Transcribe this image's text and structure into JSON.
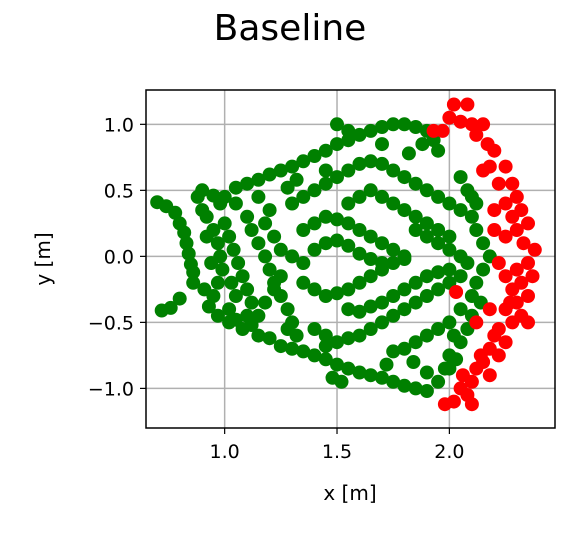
{
  "chart_data": {
    "type": "scatter",
    "title": "Baseline",
    "xlabel": "x [m]",
    "ylabel": "y [m]",
    "xlim": [
      0.65,
      2.47
    ],
    "ylim": [
      -1.3,
      1.26
    ],
    "x_ticks": [
      1.0,
      1.5,
      2.0
    ],
    "y_ticks": [
      -1.0,
      -0.5,
      0.0,
      0.5,
      1.0
    ],
    "x_tick_labels": [
      "1.0",
      "1.5",
      "2.0"
    ],
    "y_tick_labels": [
      "−1.0",
      "−0.5",
      "0.0",
      "0.5",
      "1.0"
    ],
    "grid": true,
    "legend": "none",
    "colors": {
      "safe": "#008000",
      "collision": "#ff0000"
    },
    "series": [
      {
        "color": "#008000",
        "points": [
          [
            0.7,
            0.41
          ],
          [
            0.74,
            0.38
          ],
          [
            0.78,
            0.33
          ],
          [
            0.8,
            0.25
          ],
          [
            0.82,
            0.18
          ],
          [
            0.83,
            0.1
          ],
          [
            0.84,
            0.02
          ],
          [
            0.85,
            -0.06
          ],
          [
            0.86,
            -0.12
          ],
          [
            0.86,
            -0.2
          ],
          [
            0.8,
            -0.32
          ],
          [
            0.76,
            -0.39
          ],
          [
            0.72,
            -0.41
          ],
          [
            0.88,
            0.45
          ],
          [
            0.9,
            0.5
          ],
          [
            0.95,
            0.46
          ],
          [
            0.98,
            0.4
          ],
          [
            0.92,
            0.3
          ],
          [
            0.95,
            0.2
          ],
          [
            0.97,
            0.1
          ],
          [
            0.98,
            0.0
          ],
          [
            0.99,
            -0.1
          ],
          [
            0.97,
            -0.2
          ],
          [
            0.95,
            -0.3
          ],
          [
            0.93,
            -0.38
          ],
          [
            0.97,
            -0.45
          ],
          [
            1.02,
            -0.4
          ],
          [
            1.05,
            -0.48
          ],
          [
            1.08,
            -0.55
          ],
          [
            1.12,
            -0.52
          ],
          [
            1.05,
            0.52
          ],
          [
            1.1,
            0.55
          ],
          [
            1.15,
            0.58
          ],
          [
            1.2,
            0.62
          ],
          [
            1.25,
            0.65
          ],
          [
            1.3,
            0.68
          ],
          [
            1.35,
            0.72
          ],
          [
            1.4,
            0.76
          ],
          [
            1.45,
            0.8
          ],
          [
            1.5,
            0.85
          ],
          [
            1.55,
            0.88
          ],
          [
            1.6,
            0.92
          ],
          [
            1.65,
            0.95
          ],
          [
            1.7,
            0.98
          ],
          [
            1.75,
            1.0
          ],
          [
            1.8,
            1.0
          ],
          [
            1.85,
            0.98
          ],
          [
            1.9,
            0.95
          ],
          [
            1.93,
            0.88
          ],
          [
            1.95,
            0.8
          ],
          [
            1.05,
            0.4
          ],
          [
            1.1,
            0.3
          ],
          [
            1.12,
            0.2
          ],
          [
            1.15,
            0.1
          ],
          [
            1.18,
            0.0
          ],
          [
            1.2,
            -0.1
          ],
          [
            1.22,
            -0.2
          ],
          [
            1.25,
            -0.3
          ],
          [
            1.28,
            -0.4
          ],
          [
            1.3,
            -0.5
          ],
          [
            1.15,
            -0.6
          ],
          [
            1.2,
            -0.62
          ],
          [
            1.25,
            -0.68
          ],
          [
            1.3,
            -0.7
          ],
          [
            1.35,
            -0.72
          ],
          [
            1.4,
            -0.75
          ],
          [
            1.45,
            -0.78
          ],
          [
            1.5,
            -0.82
          ],
          [
            1.55,
            -0.85
          ],
          [
            1.6,
            -0.88
          ],
          [
            1.65,
            -0.9
          ],
          [
            1.7,
            -0.92
          ],
          [
            1.75,
            -0.95
          ],
          [
            1.8,
            -0.98
          ],
          [
            1.85,
            -1.0
          ],
          [
            1.9,
            -1.02
          ],
          [
            1.95,
            -0.95
          ],
          [
            1.98,
            -0.85
          ],
          [
            2.0,
            -0.75
          ],
          [
            2.02,
            -0.6
          ],
          [
            1.3,
            0.4
          ],
          [
            1.35,
            0.45
          ],
          [
            1.4,
            0.5
          ],
          [
            1.45,
            0.55
          ],
          [
            1.5,
            0.6
          ],
          [
            1.55,
            0.65
          ],
          [
            1.6,
            0.7
          ],
          [
            1.65,
            0.72
          ],
          [
            1.7,
            0.7
          ],
          [
            1.75,
            0.65
          ],
          [
            1.8,
            0.6
          ],
          [
            1.85,
            0.55
          ],
          [
            1.9,
            0.5
          ],
          [
            1.95,
            0.45
          ],
          [
            2.0,
            0.4
          ],
          [
            2.05,
            0.35
          ],
          [
            2.1,
            0.3
          ],
          [
            2.12,
            0.2
          ],
          [
            2.15,
            0.1
          ],
          [
            2.18,
            0.0
          ],
          [
            2.15,
            -0.1
          ],
          [
            2.12,
            -0.2
          ],
          [
            2.1,
            -0.3
          ],
          [
            2.05,
            -0.4
          ],
          [
            2.0,
            -0.5
          ],
          [
            1.95,
            -0.55
          ],
          [
            1.9,
            -0.6
          ],
          [
            1.85,
            -0.65
          ],
          [
            1.8,
            -0.7
          ],
          [
            1.75,
            -0.72
          ],
          [
            1.35,
            0.2
          ],
          [
            1.4,
            0.25
          ],
          [
            1.45,
            0.3
          ],
          [
            1.5,
            0.28
          ],
          [
            1.55,
            0.25
          ],
          [
            1.6,
            0.2
          ],
          [
            1.65,
            0.15
          ],
          [
            1.7,
            0.1
          ],
          [
            1.75,
            0.05
          ],
          [
            1.8,
            0.0
          ],
          [
            1.35,
            -0.2
          ],
          [
            1.4,
            -0.25
          ],
          [
            1.45,
            -0.3
          ],
          [
            1.5,
            -0.28
          ],
          [
            1.55,
            -0.25
          ],
          [
            1.6,
            -0.2
          ],
          [
            1.65,
            -0.15
          ],
          [
            1.7,
            -0.1
          ],
          [
            1.75,
            -0.05
          ],
          [
            1.8,
            -0.02
          ],
          [
            1.25,
            0.05
          ],
          [
            1.3,
            0.0
          ],
          [
            1.35,
            -0.05
          ],
          [
            1.4,
            0.05
          ],
          [
            1.45,
            0.1
          ],
          [
            1.5,
            0.12
          ],
          [
            1.55,
            0.08
          ],
          [
            1.6,
            0.02
          ],
          [
            1.65,
            -0.02
          ],
          [
            1.7,
            -0.05
          ],
          [
            1.85,
            0.2
          ],
          [
            1.9,
            0.15
          ],
          [
            1.95,
            0.1
          ],
          [
            2.0,
            0.05
          ],
          [
            2.05,
            0.0
          ],
          [
            2.08,
            -0.05
          ],
          [
            2.05,
            -0.15
          ],
          [
            2.0,
            -0.2
          ],
          [
            1.95,
            -0.25
          ],
          [
            1.9,
            -0.3
          ],
          [
            1.85,
            -0.35
          ],
          [
            1.8,
            -0.4
          ],
          [
            1.75,
            -0.45
          ],
          [
            1.7,
            -0.5
          ],
          [
            1.65,
            -0.55
          ],
          [
            1.6,
            -0.6
          ],
          [
            1.55,
            -0.62
          ],
          [
            1.5,
            -0.65
          ],
          [
            1.45,
            -0.6
          ],
          [
            1.4,
            -0.55
          ],
          [
            1.0,
            0.25
          ],
          [
            1.02,
            0.15
          ],
          [
            1.04,
            0.05
          ],
          [
            1.06,
            -0.05
          ],
          [
            1.08,
            -0.15
          ],
          [
            1.1,
            -0.25
          ],
          [
            1.12,
            -0.35
          ],
          [
            1.1,
            -0.45
          ],
          [
            1.05,
            -0.3
          ],
          [
            1.03,
            -0.2
          ],
          [
            1.55,
            0.4
          ],
          [
            1.6,
            0.45
          ],
          [
            1.65,
            0.5
          ],
          [
            1.7,
            0.45
          ],
          [
            1.75,
            0.4
          ],
          [
            1.8,
            0.35
          ],
          [
            1.85,
            0.3
          ],
          [
            1.9,
            0.25
          ],
          [
            1.95,
            0.2
          ],
          [
            2.0,
            0.15
          ],
          [
            1.55,
            -0.4
          ],
          [
            1.6,
            -0.42
          ],
          [
            1.65,
            -0.38
          ],
          [
            1.7,
            -0.35
          ],
          [
            1.75,
            -0.3
          ],
          [
            1.8,
            -0.25
          ],
          [
            1.85,
            -0.2
          ],
          [
            1.9,
            -0.15
          ],
          [
            1.95,
            -0.12
          ],
          [
            2.0,
            -0.1
          ],
          [
            2.05,
            0.6
          ],
          [
            2.08,
            0.5
          ],
          [
            2.1,
            0.45
          ],
          [
            2.12,
            0.4
          ],
          [
            2.14,
            -0.35
          ],
          [
            2.1,
            -0.45
          ],
          [
            2.08,
            -0.55
          ],
          [
            2.05,
            -0.65
          ],
          [
            2.03,
            -0.78
          ],
          [
            2.0,
            -0.85
          ],
          [
            1.2,
            0.35
          ],
          [
            1.18,
            0.25
          ],
          [
            1.22,
            0.15
          ],
          [
            1.25,
            -0.15
          ],
          [
            1.22,
            -0.25
          ],
          [
            1.18,
            -0.35
          ],
          [
            1.28,
            0.52
          ],
          [
            1.32,
            0.58
          ],
          [
            1.28,
            -0.55
          ],
          [
            1.32,
            -0.6
          ],
          [
            1.5,
            1.0
          ],
          [
            1.55,
            0.95
          ],
          [
            1.48,
            -0.92
          ],
          [
            1.52,
            -0.95
          ],
          [
            1.7,
            0.85
          ],
          [
            1.72,
            -0.82
          ],
          [
            1.88,
            0.85
          ],
          [
            1.9,
            -0.88
          ],
          [
            1.82,
            0.78
          ],
          [
            1.84,
            -0.8
          ],
          [
            0.9,
            0.35
          ],
          [
            0.92,
            0.15
          ],
          [
            0.94,
            -0.05
          ],
          [
            0.91,
            -0.25
          ],
          [
            1.0,
            0.45
          ],
          [
            1.02,
            -0.5
          ],
          [
            1.15,
            0.45
          ],
          [
            1.15,
            -0.45
          ],
          [
            1.45,
            0.65
          ],
          [
            1.45,
            -0.68
          ]
        ]
      },
      {
        "color": "#ff0000",
        "points": [
          [
            2.03,
            -0.27
          ],
          [
            1.93,
            0.95
          ],
          [
            1.97,
            0.95
          ],
          [
            2.02,
            1.15
          ],
          [
            2.08,
            1.15
          ],
          [
            2.05,
            1.02
          ],
          [
            2.1,
            1.0
          ],
          [
            2.15,
            1.0
          ],
          [
            2.12,
            0.92
          ],
          [
            2.17,
            0.85
          ],
          [
            2.2,
            0.8
          ],
          [
            2.25,
            0.68
          ],
          [
            2.18,
            0.68
          ],
          [
            2.28,
            0.55
          ],
          [
            2.3,
            0.45
          ],
          [
            2.25,
            0.4
          ],
          [
            2.32,
            0.35
          ],
          [
            2.28,
            0.3
          ],
          [
            2.35,
            0.25
          ],
          [
            2.3,
            0.2
          ],
          [
            2.33,
            0.1
          ],
          [
            2.38,
            0.05
          ],
          [
            2.35,
            -0.05
          ],
          [
            2.3,
            -0.1
          ],
          [
            2.37,
            -0.15
          ],
          [
            2.32,
            -0.2
          ],
          [
            2.28,
            -0.25
          ],
          [
            2.35,
            -0.3
          ],
          [
            2.3,
            -0.35
          ],
          [
            2.25,
            -0.4
          ],
          [
            2.32,
            -0.45
          ],
          [
            2.28,
            -0.5
          ],
          [
            2.35,
            -0.5
          ],
          [
            2.22,
            -0.55
          ],
          [
            2.2,
            -0.6
          ],
          [
            2.25,
            -0.65
          ],
          [
            2.18,
            -0.7
          ],
          [
            2.22,
            -0.75
          ],
          [
            2.15,
            -0.8
          ],
          [
            2.12,
            -0.85
          ],
          [
            2.18,
            -0.9
          ],
          [
            2.1,
            -0.95
          ],
          [
            2.05,
            -1.0
          ],
          [
            2.08,
            -1.05
          ],
          [
            2.02,
            -1.1
          ],
          [
            1.98,
            -1.12
          ],
          [
            2.1,
            -1.12
          ],
          [
            2.22,
            0.55
          ],
          [
            2.2,
            0.35
          ],
          [
            2.25,
            0.15
          ],
          [
            2.22,
            -0.05
          ],
          [
            2.25,
            -0.15
          ],
          [
            2.18,
            -0.4
          ],
          [
            2.12,
            -0.5
          ],
          [
            2.15,
            0.65
          ],
          [
            2.2,
            0.2
          ],
          [
            2.27,
            -0.35
          ],
          [
            2.14,
            -0.75
          ],
          [
            2.06,
            -0.9
          ],
          [
            2.0,
            1.05
          ]
        ]
      }
    ]
  }
}
